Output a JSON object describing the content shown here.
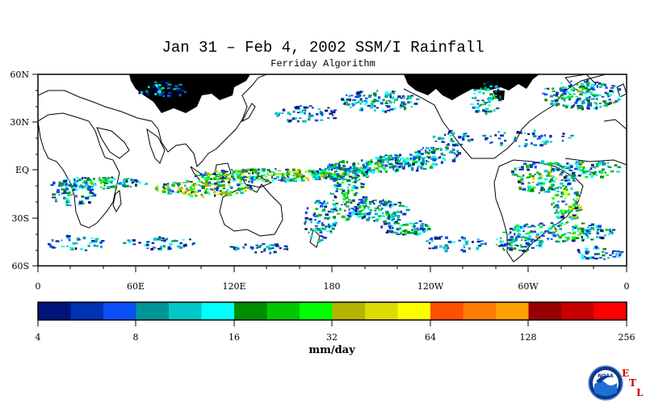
{
  "title": "Jan 31 – Feb 4, 2002 SSM/I Rainfall",
  "subtitle": "Ferriday Algorithm",
  "map": {
    "lat_labels": [
      "60N",
      "30N",
      "EQ",
      "30S",
      "60S"
    ],
    "lon_labels": [
      "0",
      "60E",
      "120E",
      "180",
      "120W",
      "60W",
      "0"
    ]
  },
  "colorbar": {
    "unit": "mm/day",
    "tick_labels": [
      "4",
      "8",
      "16",
      "32",
      "64",
      "128",
      "256"
    ],
    "colors": [
      "#00137a",
      "#0032b4",
      "#0a4ef5",
      "#009696",
      "#00c8c8",
      "#00ffff",
      "#008c00",
      "#00c800",
      "#00ff00",
      "#b4b400",
      "#dcdc00",
      "#ffff00",
      "#ff5000",
      "#ff7d00",
      "#ffa000",
      "#960000",
      "#c80000",
      "#ff0000"
    ]
  },
  "logo": {
    "text": "NOAA",
    "letters": [
      "E",
      "T",
      "L"
    ]
  }
}
